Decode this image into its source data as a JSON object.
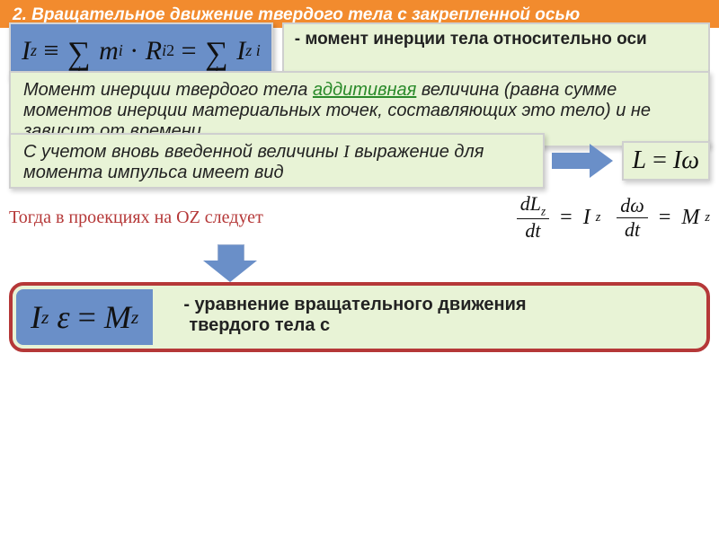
{
  "header": {
    "title": "2. Вращательное движение твердого тела с закрепленной осью"
  },
  "row1": {
    "formula_html": "<span class='it'>I</span><sub><span class='it'>z</span></sub>&nbsp;≡&nbsp;<span class='sum'><span class='top'>&nbsp;</span><span>∑</span><span class='bot'>i</span></span>&nbsp;<span class='it'>m</span><sub><span class='it'>i</span></sub>&nbsp;·&nbsp;<span class='it'>R</span><sub><span class='it'>i</span></sub><sup>2</sup>&nbsp;=&nbsp;<span class='sum'><span class='top'>&nbsp;</span><span>∑</span><span class='bot'>i</span></span>&nbsp;<span class='it'>I</span><sub><span class='it'>z i</span></sub>",
    "desc": "- момент инерции тела относительно оси"
  },
  "green1": {
    "text_before": "Момент инерции твердого тела ",
    "link": "аддитивная",
    "text_after": " величина (равна сумме моментов инерции материальных точек, составляющих это тело) и не зависит от времени"
  },
  "green2": {
    "text_html": "С учетом вновь введенной величины <span class='it' style='font-family:Times New Roman,serif'>I</span> выражение для момента импульса имеет вид"
  },
  "small_formula": {
    "html": "<span class='it'>L</span>&nbsp;=&nbsp;<span class='it'>I</span><span class='it'>ω</span>"
  },
  "proj": {
    "label": "Тогда в проекциях на OZ следует"
  },
  "frac_formula": {
    "html": "<span class='frac'><span class='num'><span class='it'>dL</span><sub><span class='it'>z</span></sub></span><span class='den'><span class='it'>dt</span></span></span>&nbsp;=&nbsp;<span class='it'>I</span><sub><span class='it'>z</span></sub>&nbsp;<span class='frac'><span class='num'><span class='it'>dω</span></span><span class='den'><span class='it'>dt</span></span></span>&nbsp;=&nbsp;<span class='it'>M</span><sub><span class='it'>z</span></sub>"
  },
  "result": {
    "formula_html": "<span class='it'>I</span><sub><span class='it'>z</span></sub>&nbsp;<span class='it'>ε</span>&nbsp;=&nbsp;<span class='it'>M</span><sub><span class='it'>z</span></sub>",
    "bullet": "уравнение вращательного движения",
    "line2": "твердого тела с"
  },
  "colors": {
    "header_bg": "#f28b2e",
    "formula_bg": "#6a8fc8",
    "box_bg": "#e8f3d6",
    "border_red": "#b53838"
  }
}
